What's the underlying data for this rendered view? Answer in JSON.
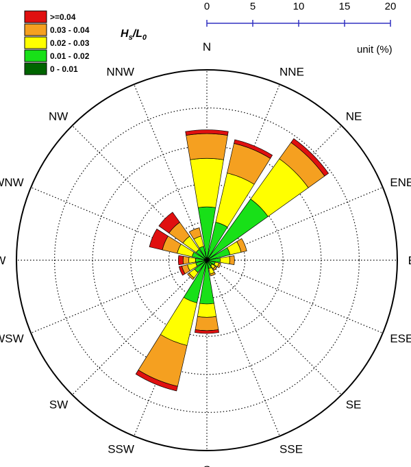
{
  "chart_data": {
    "type": "windrose",
    "parameter_label": {
      "main": "H",
      "sub1": "s",
      "slash": "/L",
      "sub2": "0"
    },
    "unit_label": "unit (%)",
    "scale": {
      "ticks": [
        "0",
        "5",
        "10",
        "15",
        "20"
      ],
      "max": 20
    },
    "ring_values": [
      4,
      8,
      12,
      16,
      20
    ],
    "directions": [
      "N",
      "NNE",
      "NE",
      "ENE",
      "E",
      "ESE",
      "SE",
      "SSE",
      "S",
      "SSW",
      "SW",
      "WSW",
      "W",
      "WNW",
      "NW",
      "NNW"
    ],
    "bins": [
      {
        "label": ">=0.04",
        "color": "#e01010"
      },
      {
        "label": "0.03 - 0.04",
        "color": "#f5a020"
      },
      {
        "label": "0.02 - 0.03",
        "color": "#ffff00"
      },
      {
        "label": "0.01 - 0.02",
        "color": "#18e018"
      },
      {
        "label": "0 - 0.01",
        "color": "#006400"
      }
    ],
    "stack_order": [
      "0 - 0.01",
      "0.01 - 0.02",
      "0.02 - 0.03",
      "0.03 - 0.04",
      ">=0.04"
    ],
    "values": {
      "N": [
        0.3,
        5.3,
        5.1,
        2.6,
        0.4
      ],
      "NNE": [
        0.3,
        3.8,
        5.3,
        3.2,
        0.4
      ],
      "NE": [
        0.3,
        7.6,
        5.2,
        2.1,
        0.5
      ],
      "ENE": [
        0.3,
        2.2,
        1.2,
        0.6,
        0.0
      ],
      "E": [
        0.3,
        1.1,
        1.0,
        0.5,
        0.0
      ],
      "ESE": [
        0.2,
        0.7,
        0.4,
        0.2,
        0.0
      ],
      "SE": [
        0.2,
        0.5,
        0.4,
        0.2,
        0.0
      ],
      "SSE": [
        0.2,
        0.7,
        0.6,
        0.2,
        0.0
      ],
      "S": [
        0.3,
        4.3,
        1.4,
        1.4,
        0.3
      ],
      "SSW": [
        0.3,
        4.3,
        4.6,
        4.4,
        0.5
      ],
      "SW": [
        0.2,
        1.4,
        0.7,
        0.2,
        0.0
      ],
      "WSW": [
        0.2,
        1.0,
        0.9,
        0.6,
        0.3
      ],
      "W": [
        0.3,
        0.9,
        0.7,
        0.6,
        0.5
      ],
      "WNW": [
        0.3,
        1.3,
        1.6,
        1.6,
        1.4
      ],
      "NW": [
        0.2,
        1.2,
        1.7,
        1.8,
        1.3
      ],
      "NNW": [
        0.3,
        1.2,
        1.1,
        0.9,
        0.0
      ]
    }
  }
}
